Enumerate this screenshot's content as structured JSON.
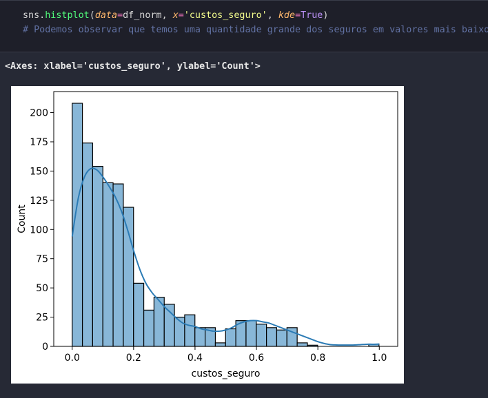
{
  "code": {
    "fn_prefix": "sns.",
    "fn_name": "histplot",
    "paren_open": "(",
    "arg1_name": "data",
    "eq": "=",
    "arg1_value": "df_norm",
    "sep": ", ",
    "arg2_name": "x",
    "arg2_value": "'custos_seguro'",
    "arg3_name": "kde",
    "arg3_value": "True",
    "paren_close": ")",
    "comment": "# Podemos observar que temos uma quantidade grande dos seguros em valores mais baixos"
  },
  "output": {
    "repr": "<Axes: xlabel='custos_seguro', ylabel='Count'>"
  },
  "chart_data": {
    "type": "bar",
    "subtype": "histogram",
    "xlabel": "custos_seguro",
    "ylabel": "Count",
    "xlim": [
      -0.06,
      1.06
    ],
    "ylim": [
      0,
      218
    ],
    "xticks": [
      0.0,
      0.2,
      0.4,
      0.6,
      0.8,
      1.0
    ],
    "xtick_labels": [
      "0.0",
      "0.2",
      "0.4",
      "0.6",
      "0.8",
      "1.0"
    ],
    "yticks": [
      0,
      25,
      50,
      75,
      100,
      125,
      150,
      175,
      200
    ],
    "ytick_labels": [
      "0",
      "25",
      "50",
      "75",
      "100",
      "125",
      "150",
      "175",
      "200"
    ],
    "bin_width": 0.0333,
    "bin_start": 0.0,
    "counts": [
      208,
      174,
      154,
      140,
      139,
      119,
      54,
      31,
      42,
      36,
      25,
      27,
      16,
      16,
      3,
      15,
      22,
      22,
      19,
      16,
      14,
      16,
      3,
      1,
      0,
      0,
      0,
      0,
      0,
      2
    ],
    "kde": {
      "x": [
        0.0,
        0.02,
        0.04,
        0.06,
        0.08,
        0.1,
        0.12,
        0.14,
        0.16,
        0.18,
        0.2,
        0.22,
        0.24,
        0.26,
        0.28,
        0.3,
        0.32,
        0.34,
        0.36,
        0.38,
        0.4,
        0.42,
        0.44,
        0.46,
        0.48,
        0.5,
        0.52,
        0.54,
        0.56,
        0.58,
        0.6,
        0.62,
        0.64,
        0.66,
        0.68,
        0.7,
        0.72,
        0.74,
        0.76,
        0.78,
        0.8,
        0.82,
        0.84,
        0.86,
        0.88,
        0.9,
        0.92,
        0.94,
        0.96,
        0.98,
        1.0
      ],
      "y": [
        94,
        127,
        145,
        152,
        151,
        145,
        137,
        128,
        116,
        100,
        82,
        66,
        54,
        46,
        40,
        34,
        29,
        24,
        20,
        18,
        17,
        15,
        14,
        13,
        13,
        14,
        16,
        19,
        21,
        22,
        22,
        21,
        20,
        18,
        16,
        14,
        12,
        10,
        8,
        6,
        4,
        2.5,
        1.5,
        1.2,
        1.1,
        1.1,
        1.2,
        1.5,
        1.8,
        1.8,
        2.0
      ]
    },
    "bar_fill": "#88b7d8",
    "bar_edge": "#000000",
    "kde_color": "#2b7bb5",
    "grid": false,
    "legend": "none"
  }
}
